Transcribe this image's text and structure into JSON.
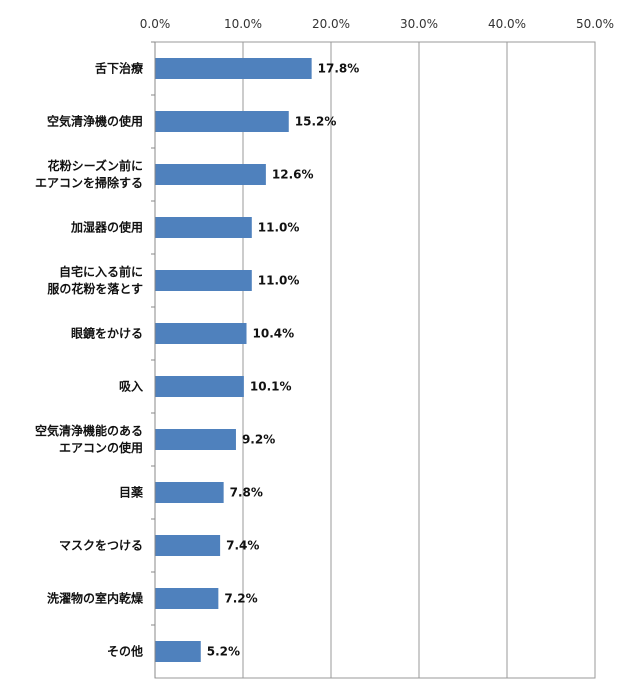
{
  "chart_data": {
    "type": "bar",
    "orientation": "horizontal",
    "title": "",
    "xlabel": "",
    "ylabel": "",
    "xlim": [
      0,
      50
    ],
    "x_ticks": [
      "0.0%",
      "10.0%",
      "20.0%",
      "30.0%",
      "40.0%",
      "50.0%"
    ],
    "grid": "vertical",
    "legend": "none",
    "bar_color": "#4f81bd",
    "categories": [
      [
        "舌下治療"
      ],
      [
        "空気清浄機の使用"
      ],
      [
        "花粉シーズン前に",
        "エアコンを掃除する"
      ],
      [
        "加湿器の使用"
      ],
      [
        "自宅に入る前に",
        "服の花粉を落とす"
      ],
      [
        "眼鏡をかける"
      ],
      [
        "吸入"
      ],
      [
        "空気清浄機能のある",
        "エアコンの使用"
      ],
      [
        "目薬"
      ],
      [
        "マスクをつける"
      ],
      [
        "洗濯物の室内乾燥"
      ],
      [
        "その他"
      ]
    ],
    "values": [
      17.8,
      15.2,
      12.6,
      11.0,
      11.0,
      10.4,
      10.1,
      9.2,
      7.8,
      7.4,
      7.2,
      5.2
    ],
    "value_labels": [
      "17.8%",
      "15.2%",
      "12.6%",
      "11.0%",
      "11.0%",
      "10.4%",
      "10.1%",
      "9.2%",
      "7.8%",
      "7.4%",
      "7.2%",
      "5.2%"
    ]
  }
}
